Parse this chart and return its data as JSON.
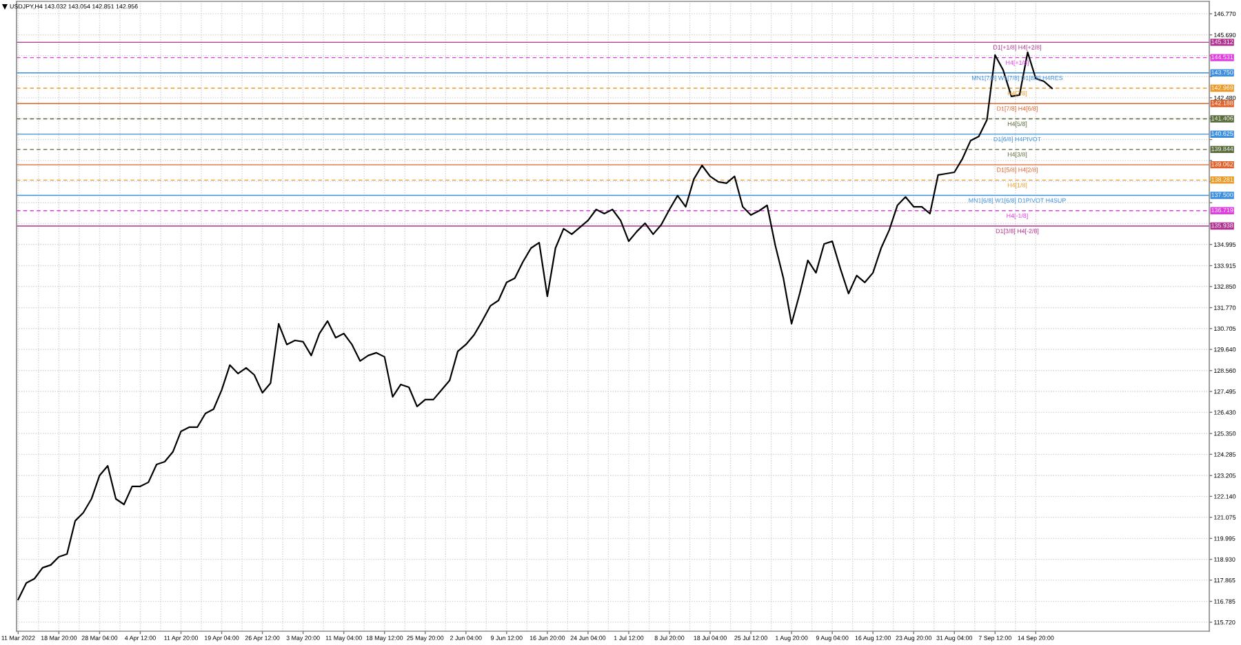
{
  "chart_data": {
    "type": "line",
    "title": "USDJPY,H4 143.032 143.054 142.851 142.956",
    "categories": [
      "11 Mar 2022",
      null,
      null,
      null,
      null,
      "18 Mar 20:00",
      null,
      null,
      null,
      null,
      "28 Mar 04:00",
      null,
      null,
      null,
      null,
      "4 Apr 12:00",
      null,
      null,
      null,
      null,
      "11 Apr 20:00",
      null,
      null,
      null,
      null,
      "19 Apr 04:00",
      null,
      null,
      null,
      null,
      "26 Apr 12:00",
      null,
      null,
      null,
      null,
      "3 May 20:00",
      null,
      null,
      null,
      null,
      "11 May 04:00",
      null,
      null,
      null,
      null,
      "18 May 12:00",
      null,
      null,
      null,
      null,
      "25 May 20:00",
      null,
      null,
      null,
      null,
      "2 Jun 04:00",
      null,
      null,
      null,
      null,
      "9 Jun 12:00",
      null,
      null,
      null,
      null,
      "16 Jun 20:00",
      null,
      null,
      null,
      null,
      "24 Jun 04:00",
      null,
      null,
      null,
      null,
      "1 Jul 12:00",
      null,
      null,
      null,
      null,
      "8 Jul 20:00",
      null,
      null,
      null,
      null,
      "18 Jul 04:00",
      null,
      null,
      null,
      null,
      "25 Jul 12:00",
      null,
      null,
      null,
      null,
      "1 Aug 20:00",
      null,
      null,
      null,
      null,
      "9 Aug 04:00",
      null,
      null,
      null,
      null,
      "16 Aug 12:00",
      null,
      null,
      null,
      null,
      "23 Aug 20:00",
      null,
      null,
      null,
      null,
      "31 Aug 04:00",
      null,
      null,
      null,
      null,
      "7 Sep 12:00",
      null,
      null,
      null,
      null,
      "14 Sep 20:00",
      null,
      null
    ],
    "values": [
      116.88,
      117.72,
      117.94,
      118.5,
      118.64,
      119.06,
      119.2,
      120.89,
      121.31,
      122.01,
      123.21,
      123.7,
      122.01,
      121.73,
      122.65,
      122.65,
      122.86,
      123.77,
      123.91,
      124.41,
      125.46,
      125.67,
      125.67,
      126.37,
      126.59,
      127.57,
      128.84,
      128.41,
      128.7,
      128.34,
      127.43,
      127.92,
      130.95,
      129.89,
      130.1,
      130.03,
      129.33,
      130.45,
      131.09,
      130.24,
      130.45,
      129.89,
      129.05,
      129.33,
      129.47,
      129.26,
      127.22,
      127.85,
      127.71,
      126.73,
      127.08,
      127.08,
      127.57,
      128.06,
      129.54,
      129.89,
      130.38,
      131.09,
      131.86,
      132.14,
      133.06,
      133.27,
      134.11,
      134.81,
      135.09,
      132.35,
      134.81,
      135.8,
      135.52,
      135.87,
      136.22,
      136.78,
      136.57,
      136.78,
      136.22,
      135.16,
      135.66,
      136.08,
      135.52,
      136.01,
      136.78,
      137.49,
      136.92,
      138.33,
      139.03,
      138.47,
      138.19,
      138.12,
      138.47,
      136.92,
      136.5,
      136.71,
      136.99,
      134.95,
      133.27,
      130.95,
      132.49,
      134.18,
      133.55,
      135.02,
      135.16,
      133.76,
      132.49,
      133.41,
      133.06,
      133.55,
      134.81,
      135.73,
      136.99,
      137.42,
      136.92,
      136.92,
      136.57,
      138.54,
      138.61,
      138.68,
      139.38,
      140.3,
      140.51,
      141.35,
      144.66,
      143.89,
      142.55,
      142.62,
      144.8,
      143.46,
      143.32,
      142.96
    ],
    "color": "#000000",
    "ylim": [
      115.26,
      147.4
    ],
    "yticks": [
      {
        "value": 146.77,
        "label": "146.770"
      },
      {
        "value": 145.69,
        "label": "145.690"
      },
      {
        "value": 144.63,
        "label": null
      },
      {
        "value": 143.56,
        "label": null
      },
      {
        "value": 142.48,
        "label": "142.480"
      },
      {
        "value": 141.42,
        "label": null
      },
      {
        "value": 140.35,
        "label": null
      },
      {
        "value": 139.28,
        "label": null
      },
      {
        "value": 138.21,
        "label": null
      },
      {
        "value": 137.125,
        "label": null
      },
      {
        "value": 136.06,
        "label": null
      },
      134.995,
      133.915,
      {
        "value": 132.85,
        "label": "132.850"
      },
      {
        "value": 131.77,
        "label": "131.770"
      },
      130.705,
      {
        "value": 129.64,
        "label": "129.640"
      },
      {
        "value": 128.56,
        "label": "128.560"
      },
      127.495,
      {
        "value": 126.43,
        "label": "126.430"
      },
      {
        "value": 125.35,
        "label": "125.350"
      },
      124.285,
      123.205,
      {
        "value": 122.14,
        "label": "122.140"
      },
      121.075,
      119.995,
      {
        "value": 118.93,
        "label": "118.930"
      },
      117.865,
      116.785,
      {
        "value": 115.72,
        "label": "115.720"
      }
    ],
    "grid": true,
    "ref_lines": [
      {
        "axis": "y",
        "value": 145.312,
        "label": "D1[+1/8] H4[+2/8]",
        "color": "#b0308f",
        "line_style": "solid"
      },
      {
        "axis": "y",
        "value": 144.531,
        "label": "H4[+1/8]",
        "color": "#e03ce0",
        "line_style": "dashed"
      },
      {
        "axis": "y",
        "value": 143.75,
        "label": "MN1[7/8] W1[7/8] D1[8/8] H4RES",
        "color": "#3c8fe0",
        "line_style": "solid"
      },
      {
        "axis": "y",
        "value": 142.969,
        "label": "H4[7/8]",
        "color": "#eb9a28",
        "line_style": "dashed"
      },
      {
        "axis": "y",
        "value": 142.188,
        "label": "D1[7/8] H4[6/8]",
        "color": "#e0602a",
        "line_style": "solid"
      },
      {
        "axis": "y",
        "value": 141.406,
        "label": "H4[5/8]",
        "color": "#5a6b3c",
        "line_style": "dashed"
      },
      {
        "axis": "y",
        "value": 140.625,
        "label": "D1[6/8] H4PIVOT",
        "color": "#3c8fe0",
        "line_style": "solid"
      },
      {
        "axis": "y",
        "value": 139.844,
        "label": "H4[3/8]",
        "color": "#5a6b3c",
        "line_style": "dashed"
      },
      {
        "axis": "y",
        "value": 139.062,
        "label": "D1[5/8] H4[2/8]",
        "color": "#e0602a",
        "line_style": "solid"
      },
      {
        "axis": "y",
        "value": 138.281,
        "label": "H4[1/8]",
        "color": "#eb9a28",
        "line_style": "dashed"
      },
      {
        "axis": "y",
        "value": 137.5,
        "label": "MN1[6/8] W1[6/8] D1PIVOT H4SUP",
        "color": "#3c8fe0",
        "line_style": "solid"
      },
      {
        "axis": "y",
        "value": 136.719,
        "label": "H4[-1/8]",
        "color": "#e03ce0",
        "line_style": "dashed"
      },
      {
        "axis": "y",
        "value": 135.938,
        "label": "D1[3/8] H4[-2/8]",
        "color": "#b0308f",
        "line_style": "solid"
      }
    ],
    "annotations": [
      "145.312",
      "144.531",
      "143.750",
      "142.969",
      "142.188",
      "141.406",
      "140.625",
      "139.844",
      "139.062",
      "138.281",
      "137.500",
      "136.719",
      "135.938"
    ]
  }
}
